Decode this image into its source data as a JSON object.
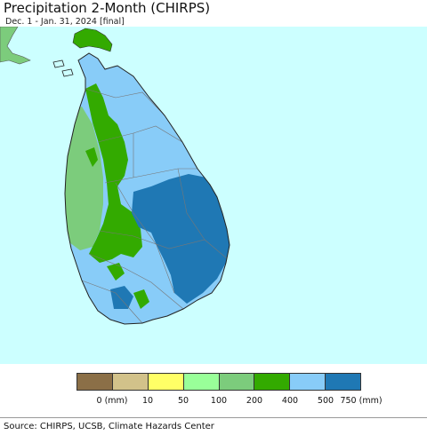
{
  "header": {
    "title": "Precipitation 2-Month (CHIRPS)",
    "subtitle": "Dec. 1 - Jan. 31, 2024 [final]"
  },
  "legend": {
    "colors": [
      "#8b6f47",
      "#d2c28a",
      "#ffff66",
      "#99ff99",
      "#7ccc7c",
      "#33aa00",
      "#88ccf8",
      "#1f78b4"
    ],
    "ticks": [
      "0 (mm)",
      "10",
      "50",
      "100",
      "200",
      "400",
      "500",
      "750 (mm)"
    ]
  },
  "map_colors": {
    "sea": "#ccffff",
    "land_india": "#7ccc7c",
    "zone_200_400": "#7ccc7c",
    "zone_400_500": "#33aa00",
    "zone_500_750": "#88ccf8",
    "zone_750_plus": "#1f78b4",
    "border": "#777777"
  },
  "footer": {
    "source": "Source: CHIRPS, UCSB, Climate Hazards Center"
  }
}
